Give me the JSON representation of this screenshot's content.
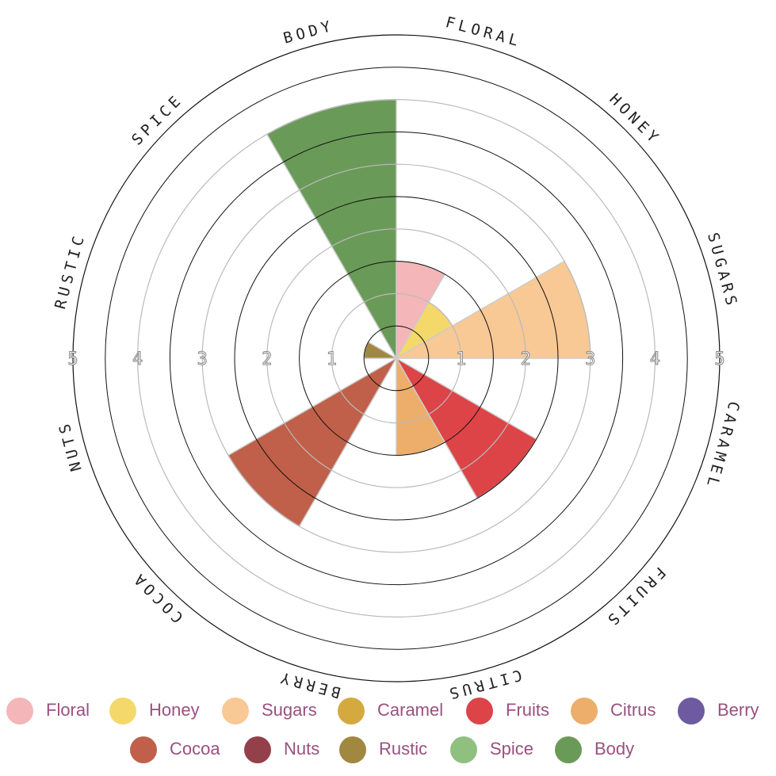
{
  "chart_data": {
    "type": "polar_area",
    "categories": [
      "Floral",
      "Honey",
      "Sugars",
      "Caramel",
      "Fruits",
      "Citrus",
      "Berry",
      "Cocoa",
      "Nuts",
      "Rustic",
      "Spice",
      "Body"
    ],
    "values": [
      1.5,
      1,
      3,
      0,
      2.5,
      1.5,
      0,
      3,
      0,
      0.5,
      0,
      4
    ],
    "colors": [
      "#f4b6b8",
      "#f5d86a",
      "#f8c895",
      "#d4aa40",
      "#dc4447",
      "#ecae6a",
      "#6e5aa0",
      "#c0604a",
      "#94404a",
      "#a08840",
      "#90c080",
      "#6a9a58"
    ],
    "rlim": [
      0,
      5
    ],
    "rticks": [
      1,
      2,
      3,
      4,
      5
    ]
  }
}
